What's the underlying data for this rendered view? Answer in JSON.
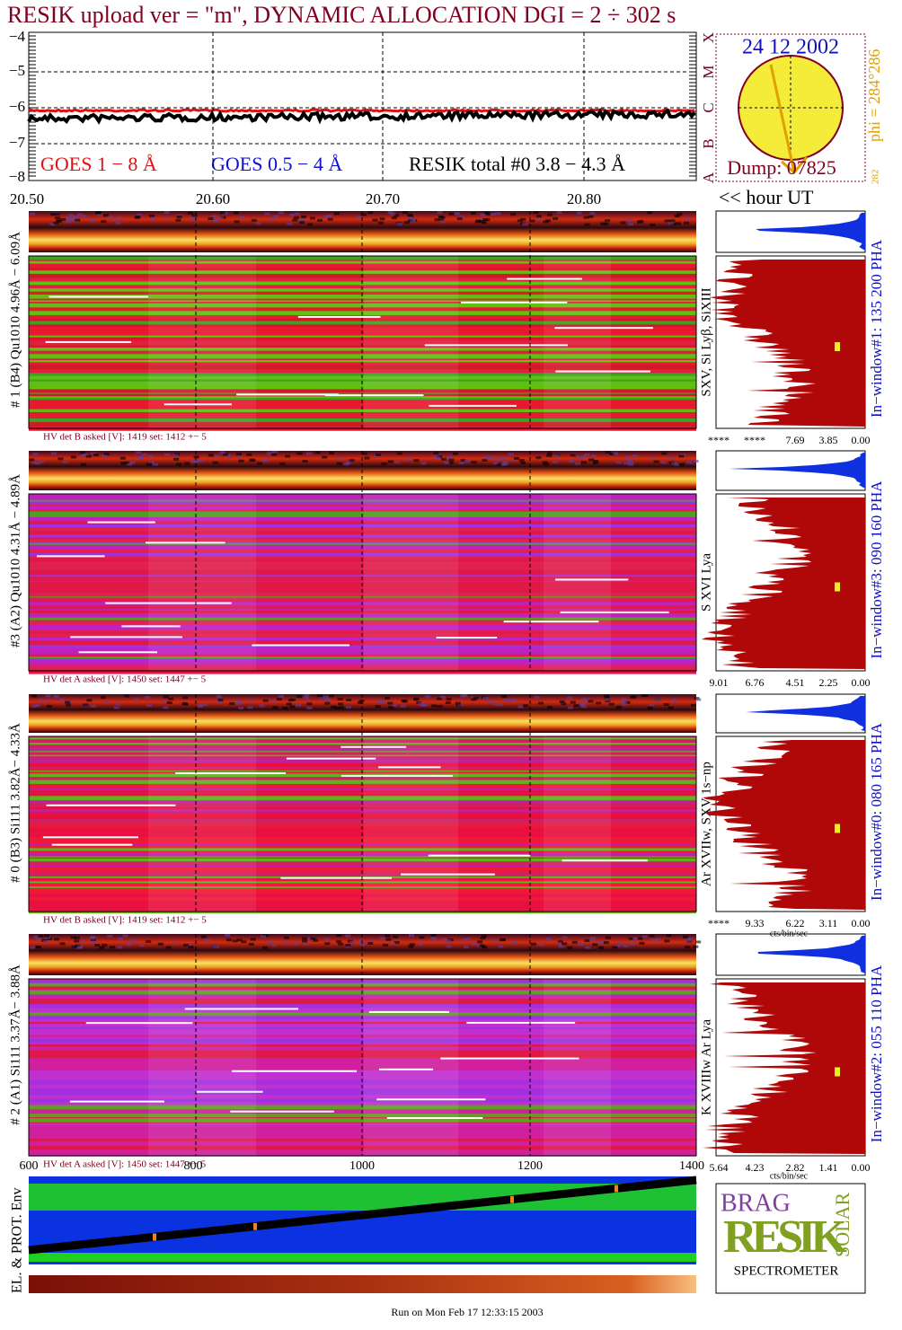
{
  "title": "RESIK upload ver = \"m\", DYNAMIC ALLOCATION  DGI =   2 ÷ 302 s",
  "goes": {
    "yticks": [
      "−4",
      "−5",
      "−6",
      "−7",
      "−8"
    ],
    "legend": [
      "GOES 1 − 8 Å",
      "GOES 0.5 − 4 Å",
      "RESIK total #0  3.8 − 4.3 Å"
    ],
    "classes": [
      "X",
      "M",
      "C",
      "B",
      "A"
    ]
  },
  "sun": {
    "date": "24 12 2002",
    "dump": "Dump: 07825",
    "phi": "phi = 284°286",
    "phi_min": "282"
  },
  "time_axis": {
    "ticks": [
      "20.50",
      "20.60",
      "20.70",
      "20.80"
    ],
    "label": "<< hour UT"
  },
  "detectors": [
    {
      "label": "# 1 (B4) Qu1010 4.96Å − 6.09Å",
      "lines": "SXV, Si Lyβ, SiXIII",
      "window": "In−window#1:  135 200 PHA",
      "hv": "HV det B asked [V]:  1419 set:  1412 +−    5",
      "counts_ticks": [
        "****",
        "****",
        "7.69",
        "3.85",
        "0.00"
      ]
    },
    {
      "label": "#3 (A2) Qu1010  4.31Å − 4.89Å",
      "lines": "S XVI Lya",
      "window": "In−window#3:  090 160 PHA",
      "hv": "HV det A asked [V]:  1450 set:  1447 +−    5",
      "counts_ticks": [
        "9.01",
        "6.76",
        "4.51",
        "2.25",
        "0.00"
      ]
    },
    {
      "label": "# 0 (B3) Si111  3.82Å− 4.33Å",
      "lines": "Ar XVIIw,  SXV 1s−np",
      "window": "In−window#0:  080 165 PHA",
      "hv": "HV det B asked [V]:  1419 set:  1412 +−    5",
      "counts_ticks": [
        "****",
        "9.33",
        "6.22",
        "3.11",
        "0.00"
      ]
    },
    {
      "label": "# 2 (A1) Si111  3.37Å− 3.88Å",
      "lines": "K XVIIIw  Ar Lya",
      "window": "In−window#2:  055 110 PHA",
      "hv": "HV det A asked [V]:  1450 set:  1447 +−    5",
      "counts_ticks": [
        "5.64",
        "4.23",
        "2.82",
        "1.41",
        "0.00"
      ]
    }
  ],
  "bin_axis": {
    "ticks": [
      "600",
      "800",
      "1000",
      "1200",
      "1400"
    ]
  },
  "counts_unit": "cts/bin/sec",
  "env": {
    "label": "EL. & PROT. Env"
  },
  "logo": {
    "bragg": "BRAG",
    "word": "RESIK",
    "solar": "SOLAR",
    "caption": "SPECTROMETER"
  },
  "footer": "Run on Mon Feb 17 12:33:15 2003"
}
